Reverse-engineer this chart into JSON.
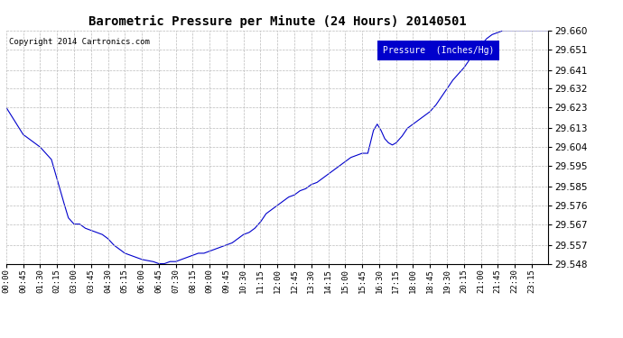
{
  "title": "Barometric Pressure per Minute (24 Hours) 20140501",
  "copyright_text": "Copyright 2014 Cartronics.com",
  "legend_label": "Pressure  (Inches/Hg)",
  "legend_bg_color": "#0000CC",
  "legend_text_color": "#FFFFFF",
  "line_color": "#0000CC",
  "background_color": "#FFFFFF",
  "grid_color": "#BBBBBB",
  "ylim": [
    29.548,
    29.66
  ],
  "yticks": [
    29.548,
    29.557,
    29.567,
    29.576,
    29.585,
    29.595,
    29.604,
    29.613,
    29.623,
    29.632,
    29.641,
    29.651,
    29.66
  ],
  "xtick_labels": [
    "00:00",
    "00:45",
    "01:30",
    "02:15",
    "03:00",
    "03:45",
    "04:30",
    "05:15",
    "06:00",
    "06:45",
    "07:30",
    "08:15",
    "09:00",
    "09:45",
    "10:30",
    "11:15",
    "12:00",
    "12:45",
    "13:30",
    "14:15",
    "15:00",
    "15:45",
    "16:30",
    "17:15",
    "18:00",
    "18:45",
    "19:30",
    "20:15",
    "21:00",
    "21:45",
    "22:30",
    "23:15"
  ],
  "waypoints": [
    [
      0,
      29.623
    ],
    [
      45,
      29.61
    ],
    [
      90,
      29.604
    ],
    [
      120,
      29.598
    ],
    [
      150,
      29.579
    ],
    [
      165,
      29.57
    ],
    [
      180,
      29.567
    ],
    [
      195,
      29.567
    ],
    [
      210,
      29.565
    ],
    [
      225,
      29.564
    ],
    [
      240,
      29.563
    ],
    [
      255,
      29.562
    ],
    [
      270,
      29.56
    ],
    [
      285,
      29.557
    ],
    [
      300,
      29.555
    ],
    [
      315,
      29.553
    ],
    [
      330,
      29.552
    ],
    [
      345,
      29.551
    ],
    [
      360,
      29.55
    ],
    [
      390,
      29.549
    ],
    [
      405,
      29.548
    ],
    [
      420,
      29.548
    ],
    [
      435,
      29.549
    ],
    [
      450,
      29.549
    ],
    [
      465,
      29.55
    ],
    [
      480,
      29.551
    ],
    [
      495,
      29.552
    ],
    [
      510,
      29.553
    ],
    [
      525,
      29.553
    ],
    [
      540,
      29.554
    ],
    [
      555,
      29.555
    ],
    [
      570,
      29.556
    ],
    [
      585,
      29.557
    ],
    [
      600,
      29.558
    ],
    [
      615,
      29.56
    ],
    [
      630,
      29.562
    ],
    [
      645,
      29.563
    ],
    [
      660,
      29.565
    ],
    [
      675,
      29.568
    ],
    [
      690,
      29.572
    ],
    [
      705,
      29.574
    ],
    [
      720,
      29.576
    ],
    [
      735,
      29.578
    ],
    [
      750,
      29.58
    ],
    [
      765,
      29.581
    ],
    [
      780,
      29.583
    ],
    [
      795,
      29.584
    ],
    [
      810,
      29.586
    ],
    [
      825,
      29.587
    ],
    [
      840,
      29.589
    ],
    [
      855,
      29.591
    ],
    [
      870,
      29.593
    ],
    [
      885,
      29.595
    ],
    [
      900,
      29.597
    ],
    [
      915,
      29.599
    ],
    [
      930,
      29.6
    ],
    [
      945,
      29.601
    ],
    [
      960,
      29.601
    ],
    [
      975,
      29.612
    ],
    [
      985,
      29.615
    ],
    [
      995,
      29.612
    ],
    [
      1005,
      29.608
    ],
    [
      1015,
      29.606
    ],
    [
      1025,
      29.605
    ],
    [
      1035,
      29.606
    ],
    [
      1050,
      29.609
    ],
    [
      1065,
      29.613
    ],
    [
      1080,
      29.615
    ],
    [
      1095,
      29.617
    ],
    [
      1110,
      29.619
    ],
    [
      1125,
      29.621
    ],
    [
      1140,
      29.624
    ],
    [
      1155,
      29.628
    ],
    [
      1170,
      29.632
    ],
    [
      1185,
      29.636
    ],
    [
      1200,
      29.639
    ],
    [
      1215,
      29.642
    ],
    [
      1230,
      29.646
    ],
    [
      1245,
      29.65
    ],
    [
      1260,
      29.653
    ],
    [
      1275,
      29.656
    ],
    [
      1290,
      29.658
    ],
    [
      1305,
      29.659
    ],
    [
      1320,
      29.66
    ],
    [
      1335,
      29.66
    ],
    [
      1350,
      29.66
    ],
    [
      1365,
      29.66
    ],
    [
      1380,
      29.66
    ],
    [
      1395,
      29.66
    ],
    [
      1410,
      29.66
    ],
    [
      1425,
      29.66
    ],
    [
      1439,
      29.66
    ]
  ]
}
